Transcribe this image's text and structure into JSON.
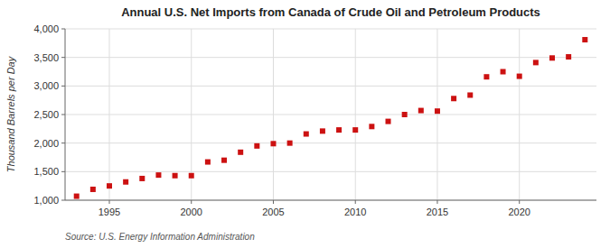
{
  "chart_data": {
    "type": "scatter",
    "title": "Annual U.S. Net Imports from Canada of Crude Oil and Petroleum Products",
    "ylabel": "Thousand Barrels per Day",
    "annotations": [
      "Source: U.S. Energy Information Administration"
    ],
    "x": [
      1993,
      1994,
      1995,
      1996,
      1997,
      1998,
      1999,
      2000,
      2001,
      2002,
      2003,
      2004,
      2005,
      2006,
      2007,
      2008,
      2009,
      2010,
      2011,
      2012,
      2013,
      2014,
      2015,
      2016,
      2017,
      2018,
      2019,
      2020,
      2021,
      2022,
      2023,
      2024
    ],
    "values": [
      1070,
      1190,
      1250,
      1320,
      1380,
      1440,
      1430,
      1430,
      1670,
      1700,
      1840,
      1950,
      1990,
      2000,
      2160,
      2210,
      2230,
      2230,
      2290,
      2380,
      2500,
      2570,
      2560,
      2780,
      2840,
      3160,
      3250,
      3170,
      3410,
      3490,
      3510,
      3810
    ],
    "color": "#cc1111",
    "marker": "square",
    "xlim": [
      1992.3,
      2024.7
    ],
    "xticks": [
      1995,
      2000,
      2005,
      2010,
      2015,
      2020
    ],
    "ylim": [
      1000,
      4000
    ],
    "yticks": [
      {
        "value": 1000,
        "label": "1,000"
      },
      {
        "value": 1500,
        "label": "1,500"
      },
      {
        "value": 2000,
        "label": "2,000"
      },
      {
        "value": 2500,
        "label": "2,500"
      },
      {
        "value": 3000,
        "label": "3,000"
      },
      {
        "value": 3500,
        "label": "3,500"
      },
      {
        "value": 4000,
        "label": "4,000"
      }
    ],
    "grid": true
  }
}
